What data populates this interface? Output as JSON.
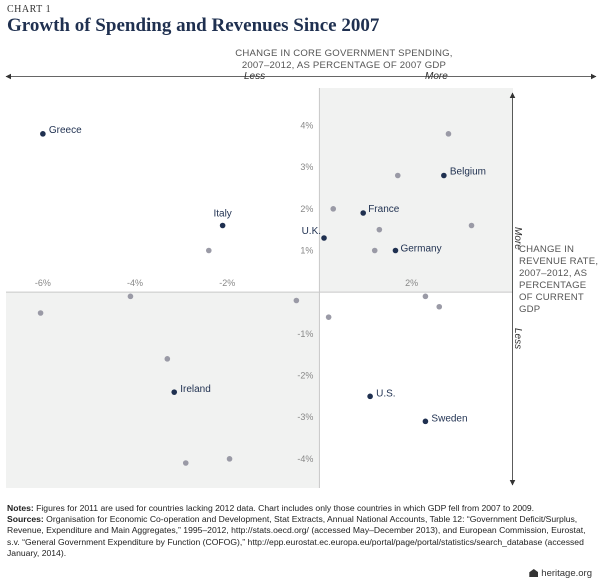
{
  "header": {
    "chart_number": "CHART 1",
    "title": "Growth of Spending and Revenues Since 2007"
  },
  "axis": {
    "x_title": "CHANGE IN CORE GOVERNMENT SPENDING, 2007–2012, AS PERCENTAGE OF 2007 GDP",
    "y_title": "CHANGE IN REVENUE RATE, 2007–2012, AS PERCENTAGE OF CURRENT GDP",
    "x_less": "Less",
    "x_more": "More",
    "y_more": "More",
    "y_less": "Less"
  },
  "footer": {
    "notes_label": "Notes:",
    "notes_text": "Figures for 2011 are used for countries lacking 2012 data. Chart includes only those countries in which GDP fell from 2007 to 2009.",
    "sources_label": "Sources:",
    "sources_text": "Organisation for Economic Co-operation and Development, Stat Extracts, Annual National Accounts, Table 12: “Government Deficit/Surplus, Revenue, Expenditure and Main Aggregates,” 1995–2012, http://stats.oecd.org/ (accessed May–December 2013), and European Commission, Eurostat, s.v. “General Government Expenditure by Function (COFOG),” http://epp.eurostat.ec.europa.eu/portal/page/portal/statistics/search_database (accessed January, 2014).",
    "brand": "heritage.org"
  },
  "chart_data": {
    "type": "scatter",
    "xlim": [
      -6.8,
      4.2
    ],
    "ylim": [
      -4.7,
      4.9
    ],
    "x_ticks": [
      -6,
      -4,
      -2,
      2
    ],
    "x_tick_labels": [
      "-6%",
      "-4%",
      "-2%",
      "2%"
    ],
    "y_ticks": [
      4,
      3,
      2,
      1,
      -1,
      -2,
      -3,
      -4
    ],
    "y_tick_labels": [
      "4%",
      "3%",
      "2%",
      "1%",
      "-1%",
      "-2%",
      "-3%",
      "-4%"
    ],
    "colors": {
      "labeled": "#1f3050",
      "unlabeled": "#9a9aa6",
      "quadrant_fill": "#f1f2f1",
      "axis_line": "#c8c8c8"
    },
    "labeled_points": [
      {
        "name": "Greece",
        "x": -6.0,
        "y": 3.8
      },
      {
        "name": "Italy",
        "x": -2.1,
        "y": 1.6
      },
      {
        "name": "U.K.",
        "x": 0.1,
        "y": 1.3
      },
      {
        "name": "France",
        "x": 0.95,
        "y": 1.9
      },
      {
        "name": "Germany",
        "x": 1.65,
        "y": 1.0
      },
      {
        "name": "Belgium",
        "x": 2.7,
        "y": 2.8
      },
      {
        "name": "Ireland",
        "x": -3.15,
        "y": -2.4
      },
      {
        "name": "U.S.",
        "x": 1.1,
        "y": -2.5
      },
      {
        "name": "Sweden",
        "x": 2.3,
        "y": -3.1
      }
    ],
    "unlabeled_points": [
      {
        "x": 2.8,
        "y": 3.8
      },
      {
        "x": 1.7,
        "y": 2.8
      },
      {
        "x": 0.3,
        "y": 2.0
      },
      {
        "x": 1.3,
        "y": 1.5
      },
      {
        "x": 3.3,
        "y": 1.6
      },
      {
        "x": 1.2,
        "y": 1.0
      },
      {
        "x": -2.4,
        "y": 1.0
      },
      {
        "x": -4.1,
        "y": -0.1
      },
      {
        "x": -6.05,
        "y": -0.5
      },
      {
        "x": -0.5,
        "y": -0.2
      },
      {
        "x": 2.3,
        "y": -0.1
      },
      {
        "x": 2.6,
        "y": -0.35
      },
      {
        "x": 0.2,
        "y": -0.6
      },
      {
        "x": -3.3,
        "y": -1.6
      },
      {
        "x": -2.9,
        "y": -4.1
      },
      {
        "x": -1.95,
        "y": -4.0
      }
    ]
  }
}
